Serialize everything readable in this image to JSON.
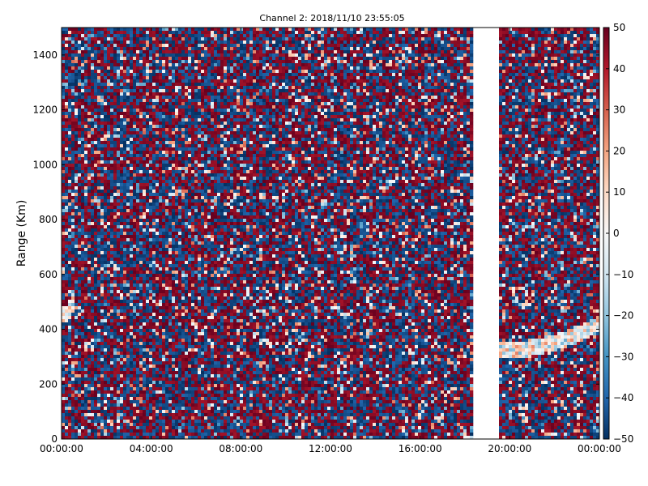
{
  "chart_data": {
    "type": "heatmap",
    "title": "Channel 2: 2018/11/10 23:55:05",
    "xlabel": "",
    "ylabel": "Range (Km)",
    "x_tick_labels": [
      "00:00:00",
      "04:00:00",
      "08:00:00",
      "12:00:00",
      "16:00:00",
      "20:00:00",
      "00:00:00"
    ],
    "x_range_hours": [
      0,
      24
    ],
    "y_tick_labels": [
      "0",
      "200",
      "400",
      "600",
      "800",
      "1000",
      "1200",
      "1400"
    ],
    "y_ticks": [
      0,
      200,
      400,
      600,
      800,
      1000,
      1200,
      1400
    ],
    "ylim": [
      0,
      1500
    ],
    "data_gap_hours": [
      18.3,
      19.45
    ],
    "colorbar": {
      "colormap": "RdBu_r",
      "range": [
        -50,
        50
      ],
      "tick_labels": [
        "50",
        "40",
        "30",
        "20",
        "10",
        "0",
        "−10",
        "−20",
        "−30",
        "−40",
        "−50"
      ],
      "ticks": [
        50,
        40,
        30,
        20,
        10,
        0,
        -10,
        -20,
        -30,
        -40,
        -50
      ]
    },
    "features": [
      {
        "description": "echo band",
        "x_hours": [
          19.45,
          24
        ],
        "y_km": [
          300,
          440
        ]
      },
      {
        "description": "echo band",
        "x_hours": [
          0,
          0.6
        ],
        "y_km": [
          440,
          520
        ]
      }
    ],
    "grid": false,
    "legend": "none"
  }
}
